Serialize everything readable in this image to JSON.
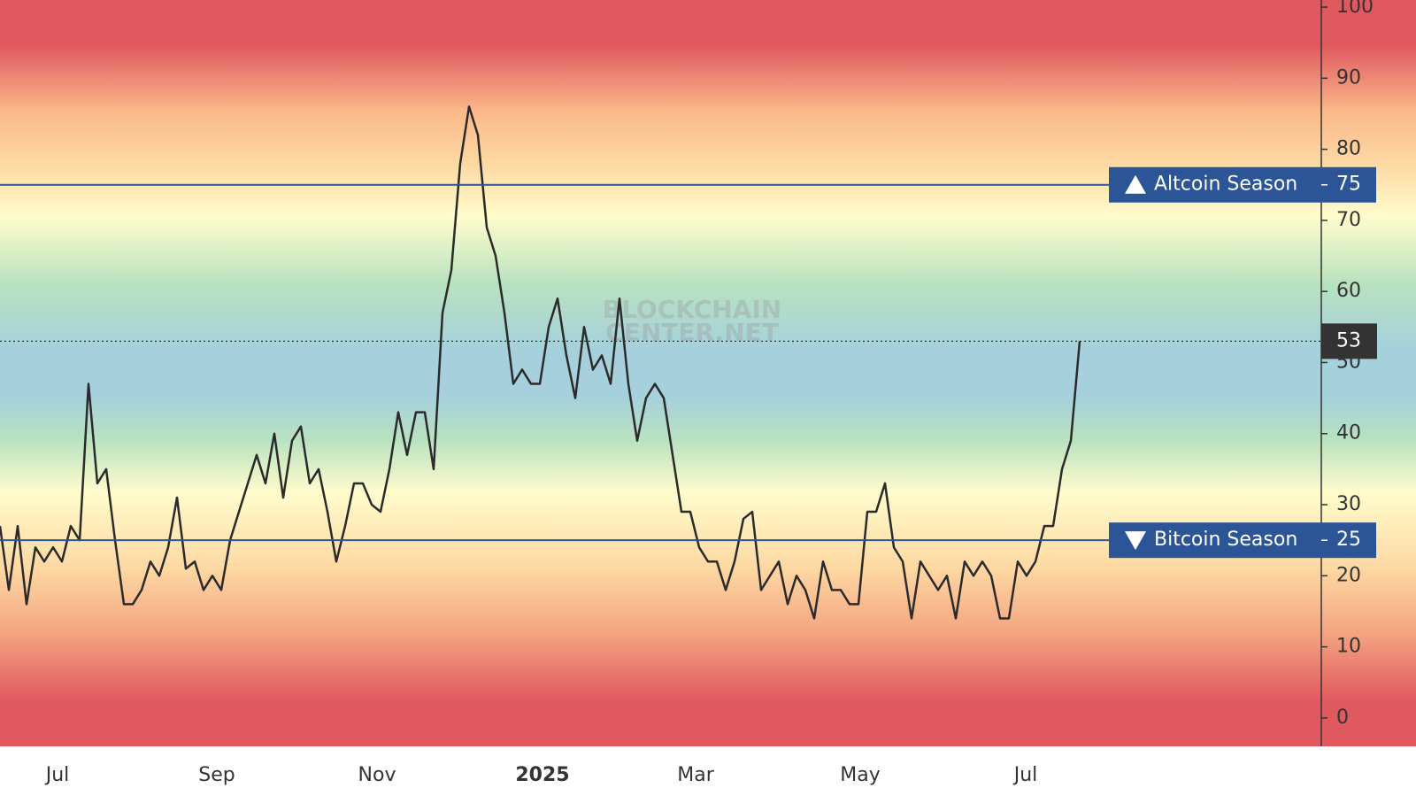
{
  "chart_data": {
    "type": "line",
    "watermark": [
      "BLOCKCHAIN",
      "CENTER.NET"
    ],
    "values": [
      27,
      18,
      27,
      16,
      24,
      22,
      24,
      22,
      27,
      25,
      47,
      33,
      35,
      25,
      16,
      16,
      18,
      22,
      20,
      24,
      31,
      21,
      22,
      18,
      20,
      18,
      25,
      29,
      33,
      37,
      33,
      40,
      31,
      39,
      41,
      33,
      35,
      29,
      22,
      27,
      33,
      33,
      30,
      29,
      35,
      43,
      37,
      43,
      43,
      35,
      57,
      63,
      78,
      86,
      82,
      69,
      65,
      57,
      47,
      49,
      47,
      47,
      55,
      59,
      51,
      45,
      55,
      49,
      51,
      47,
      59,
      47,
      39,
      45,
      47,
      45,
      37,
      29,
      29,
      24,
      22,
      22,
      18,
      22,
      28,
      29,
      18,
      20,
      22,
      16,
      20,
      18,
      14,
      22,
      18,
      18,
      16,
      16,
      29,
      29,
      33,
      24,
      22,
      14,
      22,
      20,
      18,
      20,
      14,
      22,
      20,
      22,
      20,
      14,
      14,
      22,
      20,
      22,
      27,
      27,
      35,
      39,
      53
    ],
    "color": "#2b2b2b",
    "xlim": [
      0,
      149.2
    ],
    "xticks": [
      {
        "value": 6.5,
        "label": "Jul"
      },
      {
        "value": 24.5,
        "label": "Sep"
      },
      {
        "value": 42.6,
        "label": "Nov"
      },
      {
        "value": 61.3,
        "label": "2025"
      },
      {
        "value": 78.6,
        "label": "Mar"
      },
      {
        "value": 97.2,
        "label": "May"
      },
      {
        "value": 115.9,
        "label": "Jul"
      }
    ],
    "ylim": [
      -4,
      101
    ],
    "yticks": [
      0,
      10,
      20,
      30,
      40,
      50,
      60,
      70,
      80,
      90,
      100
    ],
    "reference_lines": [
      {
        "value": 75,
        "label": "Altcoin Season",
        "direction": "up",
        "color": "#2c5597"
      },
      {
        "value": 25,
        "label": "Bitcoin Season",
        "direction": "down",
        "color": "#2c5597"
      }
    ]
  }
}
